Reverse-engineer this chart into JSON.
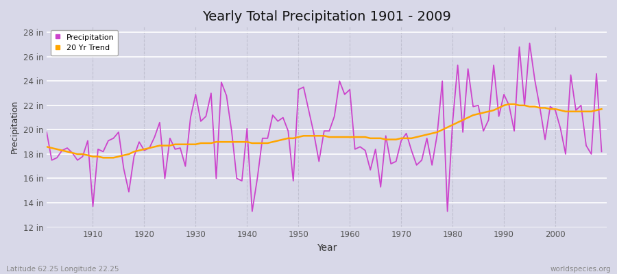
{
  "title": "Yearly Total Precipitation 1901 - 2009",
  "xlabel": "Year",
  "ylabel": "Precipitation",
  "subtitle_left": "Latitude 62.25 Longitude 22.25",
  "subtitle_right": "worldspecies.org",
  "ylim": [
    12,
    28.5
  ],
  "ytick_labels": [
    "12 in",
    "14 in",
    "16 in",
    "18 in",
    "20 in",
    "22 in",
    "24 in",
    "26 in",
    "28 in"
  ],
  "ytick_values": [
    12,
    14,
    16,
    18,
    20,
    22,
    24,
    26,
    28
  ],
  "years": [
    1901,
    1902,
    1903,
    1904,
    1905,
    1906,
    1907,
    1908,
    1909,
    1910,
    1911,
    1912,
    1913,
    1914,
    1915,
    1916,
    1917,
    1918,
    1919,
    1920,
    1921,
    1922,
    1923,
    1924,
    1925,
    1926,
    1927,
    1928,
    1929,
    1930,
    1931,
    1932,
    1933,
    1934,
    1935,
    1936,
    1937,
    1938,
    1939,
    1940,
    1941,
    1942,
    1943,
    1944,
    1945,
    1946,
    1947,
    1948,
    1949,
    1950,
    1951,
    1952,
    1953,
    1954,
    1955,
    1956,
    1957,
    1958,
    1959,
    1960,
    1961,
    1962,
    1963,
    1964,
    1965,
    1966,
    1967,
    1968,
    1969,
    1970,
    1971,
    1972,
    1973,
    1974,
    1975,
    1976,
    1977,
    1978,
    1979,
    1980,
    1981,
    1982,
    1983,
    1984,
    1985,
    1986,
    1987,
    1988,
    1989,
    1990,
    1991,
    1992,
    1993,
    1994,
    1995,
    1996,
    1997,
    1998,
    1999,
    2000,
    2001,
    2002,
    2003,
    2004,
    2005,
    2006,
    2007,
    2008,
    2009
  ],
  "precip": [
    19.8,
    17.5,
    17.7,
    18.3,
    18.5,
    18.1,
    17.5,
    17.8,
    19.1,
    13.7,
    18.4,
    18.2,
    19.1,
    19.3,
    19.8,
    16.8,
    14.9,
    17.8,
    19.0,
    18.3,
    18.5,
    19.4,
    20.6,
    16.0,
    19.3,
    18.4,
    18.5,
    17.0,
    21.0,
    22.9,
    20.7,
    21.1,
    23.0,
    16.0,
    23.9,
    22.8,
    19.9,
    16.0,
    15.8,
    20.1,
    13.3,
    16.0,
    19.3,
    19.3,
    21.2,
    20.7,
    21.0,
    19.9,
    15.8,
    23.3,
    23.5,
    21.6,
    19.7,
    17.4,
    19.9,
    19.9,
    21.1,
    24.0,
    22.9,
    23.3,
    18.4,
    18.6,
    18.3,
    16.7,
    18.4,
    15.3,
    19.5,
    17.2,
    17.4,
    19.1,
    19.7,
    18.3,
    17.1,
    17.5,
    19.3,
    17.1,
    19.6,
    24.0,
    13.3,
    20.6,
    25.3,
    19.8,
    25.0,
    21.9,
    22.0,
    19.9,
    20.8,
    25.3,
    21.1,
    22.9,
    22.0,
    19.9,
    26.8,
    22.0,
    27.1,
    24.1,
    21.8,
    19.2,
    21.9,
    21.6,
    20.1,
    18.0,
    24.5,
    21.6,
    22.0,
    18.7,
    18.0,
    24.6,
    18.2
  ],
  "trend": [
    18.6,
    18.5,
    18.4,
    18.3,
    18.2,
    18.1,
    18.0,
    18.0,
    17.9,
    17.8,
    17.8,
    17.7,
    17.7,
    17.7,
    17.8,
    17.9,
    18.0,
    18.2,
    18.3,
    18.4,
    18.5,
    18.6,
    18.7,
    18.7,
    18.7,
    18.8,
    18.8,
    18.8,
    18.8,
    18.8,
    18.9,
    18.9,
    18.9,
    19.0,
    19.0,
    19.0,
    19.0,
    19.0,
    19.0,
    19.0,
    18.9,
    18.9,
    18.9,
    18.9,
    19.0,
    19.1,
    19.2,
    19.3,
    19.3,
    19.4,
    19.5,
    19.5,
    19.5,
    19.5,
    19.5,
    19.4,
    19.4,
    19.4,
    19.4,
    19.4,
    19.4,
    19.4,
    19.4,
    19.3,
    19.3,
    19.3,
    19.2,
    19.2,
    19.2,
    19.3,
    19.3,
    19.3,
    19.4,
    19.5,
    19.6,
    19.7,
    19.8,
    20.0,
    20.2,
    20.4,
    20.6,
    20.8,
    21.0,
    21.2,
    21.3,
    21.4,
    21.5,
    21.6,
    21.8,
    22.0,
    22.1,
    22.1,
    22.0,
    22.0,
    21.9,
    21.9,
    21.8,
    21.8,
    21.7,
    21.7,
    21.6,
    21.5,
    21.5,
    21.5,
    21.5,
    21.5,
    21.5,
    21.6,
    21.7
  ],
  "precip_color": "#CC44CC",
  "trend_color": "#FFA500",
  "bg_color": "#D8D8E8",
  "plot_bg_color": "#D8D8E8",
  "grid_h_color": "#ffffff",
  "grid_v_color": "#c0c0d0",
  "title_fontsize": 14,
  "tick_color": "#555555",
  "label_color": "#333333",
  "bottom_text_color": "#888888"
}
